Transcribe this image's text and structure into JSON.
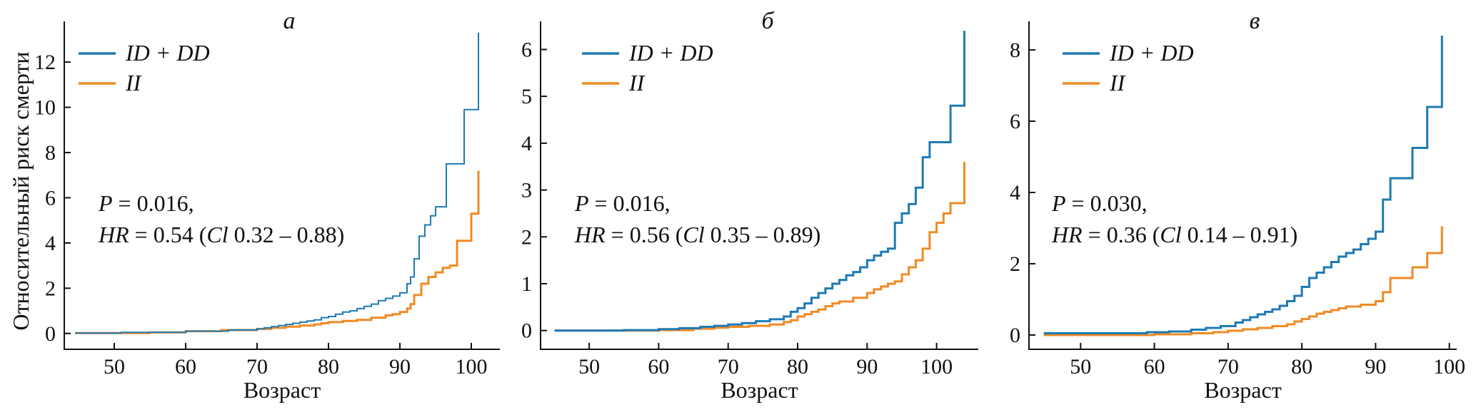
{
  "ylabel_shared": "Относительный риск смерти",
  "colors": {
    "series_a": "#1f7ab4",
    "series_b": "#f08a24",
    "text": "#111111"
  },
  "chart_data": [
    {
      "type": "line",
      "title": "а",
      "xlabel": "Возраст",
      "ylabel": "Относительный риск смерти",
      "xlim": [
        43,
        104
      ],
      "ylim": [
        -0.7,
        13.8
      ],
      "xticks": [
        50,
        60,
        70,
        80,
        90,
        100
      ],
      "yticks": [
        0,
        2,
        4,
        6,
        8,
        10,
        12
      ],
      "legend": {
        "location": "top-left"
      },
      "annotation": {
        "line1": {
          "italic": "P",
          "rest": " = 0.016,"
        },
        "line2": {
          "italic": "HR",
          "mid": " = 0.54 (",
          "italic2": "Cl",
          "rest": " 0.32 – 0.88)"
        }
      },
      "series": [
        {
          "name": "ID + DD",
          "color": "#1f7ab4",
          "width": 2,
          "x": [
            44.5,
            51,
            60,
            66,
            70,
            71,
            72,
            73,
            74,
            75,
            76,
            77,
            78,
            79,
            80,
            81,
            82,
            83,
            84,
            85,
            86,
            87,
            88,
            89,
            90,
            91,
            91.5,
            92,
            92.7,
            93.5,
            94.3,
            95,
            96.5,
            97,
            99,
            100,
            101
          ],
          "y": [
            0.02,
            0.05,
            0.1,
            0.15,
            0.2,
            0.25,
            0.3,
            0.35,
            0.4,
            0.45,
            0.5,
            0.55,
            0.6,
            0.7,
            0.75,
            0.85,
            0.95,
            1.0,
            1.1,
            1.2,
            1.3,
            1.45,
            1.55,
            1.65,
            1.8,
            2.2,
            2.5,
            3.3,
            4.3,
            4.8,
            5.2,
            5.6,
            7.5,
            7.5,
            9.9,
            9.9,
            13.3
          ]
        },
        {
          "name": "II",
          "color": "#f08a24",
          "width": 3,
          "x": [
            44.5,
            55,
            60,
            65,
            70,
            72,
            74,
            76,
            78,
            79,
            80,
            82,
            84,
            86,
            88,
            89,
            90,
            91,
            91.5,
            92,
            93,
            94,
            95,
            96,
            97,
            98,
            99,
            100,
            101
          ],
          "y": [
            0.02,
            0.05,
            0.1,
            0.15,
            0.2,
            0.25,
            0.3,
            0.35,
            0.4,
            0.45,
            0.5,
            0.55,
            0.6,
            0.7,
            0.8,
            0.85,
            0.95,
            1.1,
            1.3,
            1.7,
            2.2,
            2.5,
            2.7,
            2.9,
            3.0,
            4.1,
            4.1,
            5.3,
            7.2
          ]
        }
      ]
    },
    {
      "type": "line",
      "title": "б",
      "xlabel": "Возраст",
      "ylabel": "",
      "xlim": [
        43,
        106
      ],
      "ylim": [
        -0.4,
        6.6
      ],
      "xticks": [
        50,
        60,
        70,
        80,
        90,
        100
      ],
      "yticks": [
        0,
        1,
        2,
        3,
        4,
        5,
        6
      ],
      "legend": {
        "location": "top-left"
      },
      "annotation": {
        "line1": {
          "italic": "P",
          "rest": " = 0.016,"
        },
        "line2": {
          "italic": "HR",
          "mid": " = 0.56 (",
          "italic2": "Cl",
          "rest": " 0.35 – 0.89)"
        }
      },
      "series": [
        {
          "name": "ID + DD",
          "color": "#1f7ab4",
          "width": 3,
          "x": [
            45,
            55,
            60,
            63,
            66,
            68,
            70,
            72,
            74,
            76,
            78,
            79,
            80,
            81,
            82,
            83,
            84,
            85,
            86,
            87,
            88,
            89,
            90,
            91,
            92,
            93,
            94,
            95,
            96,
            97,
            98,
            99,
            100,
            102,
            104
          ],
          "y": [
            0.0,
            0.01,
            0.03,
            0.05,
            0.08,
            0.1,
            0.13,
            0.16,
            0.2,
            0.24,
            0.3,
            0.4,
            0.48,
            0.58,
            0.7,
            0.8,
            0.9,
            1.0,
            1.08,
            1.18,
            1.25,
            1.35,
            1.5,
            1.6,
            1.68,
            1.75,
            2.3,
            2.5,
            2.7,
            3.05,
            3.7,
            4.02,
            4.02,
            4.8,
            6.4
          ]
        },
        {
          "name": "II",
          "color": "#f08a24",
          "width": 3,
          "x": [
            45,
            60,
            65,
            68,
            70,
            73,
            76,
            78,
            79,
            80,
            81,
            82,
            83,
            84,
            85,
            86,
            88,
            90,
            91,
            92,
            93,
            94,
            95,
            96,
            97,
            98,
            99,
            100,
            101,
            102,
            104
          ],
          "y": [
            0.0,
            0.01,
            0.04,
            0.06,
            0.08,
            0.1,
            0.13,
            0.18,
            0.22,
            0.3,
            0.35,
            0.4,
            0.45,
            0.52,
            0.58,
            0.62,
            0.7,
            0.8,
            0.88,
            0.94,
            1.0,
            1.05,
            1.2,
            1.35,
            1.5,
            1.75,
            2.1,
            2.3,
            2.5,
            2.72,
            3.6
          ]
        }
      ]
    },
    {
      "type": "line",
      "title": "в",
      "xlabel": "Возраст",
      "ylabel": "",
      "xlim": [
        43,
        101
      ],
      "ylim": [
        -0.4,
        8.8
      ],
      "xticks": [
        50,
        60,
        70,
        80,
        90,
        100
      ],
      "yticks": [
        0,
        2,
        4,
        6,
        8
      ],
      "legend": {
        "location": "top-left"
      },
      "annotation": {
        "line1": {
          "italic": "P",
          "rest": " = 0.030,"
        },
        "line2": {
          "italic": "HR",
          "mid": " = 0.36 (",
          "italic2": "Cl",
          "rest": " 0.14 – 0.91)"
        }
      },
      "series": [
        {
          "name": "ID + DD",
          "color": "#1f7ab4",
          "width": 3,
          "x": [
            45,
            59,
            62,
            65,
            67,
            69,
            71,
            72,
            73,
            74,
            75,
            76,
            77,
            78,
            79,
            80,
            81,
            82,
            83,
            84,
            85,
            86,
            87,
            88,
            89,
            90,
            91,
            92,
            95,
            97,
            99
          ],
          "y": [
            0.05,
            0.08,
            0.1,
            0.15,
            0.2,
            0.25,
            0.35,
            0.42,
            0.5,
            0.58,
            0.65,
            0.72,
            0.82,
            0.95,
            1.1,
            1.35,
            1.6,
            1.75,
            1.9,
            2.05,
            2.2,
            2.3,
            2.4,
            2.55,
            2.7,
            2.9,
            3.8,
            4.4,
            5.25,
            6.4,
            8.4
          ]
        },
        {
          "name": "II",
          "color": "#f08a24",
          "width": 3,
          "x": [
            45,
            60,
            65,
            68,
            70,
            72,
            74,
            76,
            78,
            79,
            80,
            81,
            82,
            83,
            84,
            85,
            86,
            88,
            90,
            91,
            92,
            95,
            97,
            99
          ],
          "y": [
            0.0,
            0.02,
            0.05,
            0.08,
            0.12,
            0.16,
            0.2,
            0.25,
            0.3,
            0.38,
            0.45,
            0.52,
            0.6,
            0.65,
            0.7,
            0.75,
            0.8,
            0.85,
            0.95,
            1.2,
            1.6,
            1.9,
            2.3,
            3.05
          ]
        }
      ]
    }
  ]
}
